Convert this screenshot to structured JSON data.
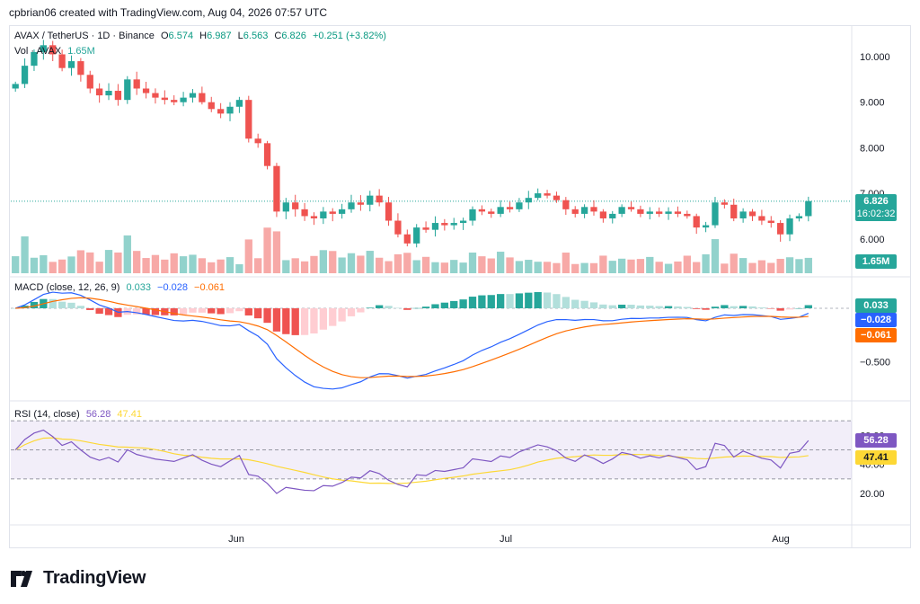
{
  "header": {
    "attribution": "cpbrian06 created with TradingView.com, Aug 04, 2026 07:57 UTC"
  },
  "legend": {
    "symbol": "AVAX / TetherUS · 1D · Binance",
    "o_label": "O",
    "o": "6.574",
    "h_label": "H",
    "h": "6.987",
    "l_label": "L",
    "l": "6.563",
    "c_label": "C",
    "c": "6.826",
    "change": "+0.251 (+3.82%)",
    "vol_label": "Vol · AVAX",
    "vol_value": "1.65M",
    "macd_label": "MACD (close, 12, 26, 9)",
    "macd_hist": "0.033",
    "macd_line": "−0.028",
    "macd_signal": "−0.061",
    "rsi_label": "RSI (14, close)",
    "rsi_value": "56.28",
    "rsi_ma": "47.41"
  },
  "badges": {
    "price": "6.826",
    "countdown": "16:02:32",
    "volume": "1.65M",
    "macd_hist": "0.033",
    "macd_line": "−0.028",
    "macd_signal": "−0.061",
    "rsi": "56.28",
    "rsi_ma": "47.41"
  },
  "colors": {
    "up": "#26a69a",
    "down": "#ef5350",
    "up_vol": "#92d2cc",
    "down_vol": "#f7a9a7",
    "macd": "#2962ff",
    "signal": "#ff6d00",
    "rsi": "#7e57c2",
    "rsi_ma": "#fdd835"
  },
  "brand": "TradingView",
  "chart_data": {
    "type": "candlestick",
    "x_ticks": [
      "Jun",
      "Jul",
      "Aug"
    ],
    "price_axis": [
      "10.000",
      "9.000",
      "8.000",
      "7.000",
      "6.000"
    ],
    "macd_axis": [
      "−0.500"
    ],
    "rsi_axis": [
      "60.00",
      "40.00",
      "20.00"
    ],
    "candles_close": [
      9.4,
      9.8,
      10.1,
      10.25,
      10.05,
      9.75,
      9.9,
      9.6,
      9.3,
      9.15,
      9.25,
      9.05,
      9.5,
      9.3,
      9.2,
      9.1,
      9.05,
      9.0,
      9.1,
      9.2,
      9.0,
      8.85,
      8.75,
      8.9,
      9.05,
      8.2,
      8.1,
      7.6,
      6.6,
      6.8,
      6.65,
      6.5,
      6.45,
      6.6,
      6.55,
      6.65,
      6.8,
      6.75,
      6.95,
      6.8,
      6.4,
      6.1,
      5.9,
      6.25,
      6.2,
      6.35,
      6.3,
      6.35,
      6.4,
      6.65,
      6.6,
      6.55,
      6.7,
      6.65,
      6.8,
      6.9,
      7.0,
      6.95,
      6.85,
      6.65,
      6.55,
      6.7,
      6.6,
      6.45,
      6.55,
      6.7,
      6.65,
      6.55,
      6.6,
      6.55,
      6.6,
      6.55,
      6.5,
      6.25,
      6.3,
      6.8,
      6.75,
      6.45,
      6.6,
      6.5,
      6.4,
      6.35,
      6.1,
      6.45,
      6.5,
      6.83
    ],
    "volume_note": "Volume bars per candle",
    "macd_hist_range": [
      -0.6,
      0.35
    ],
    "rsi_range": [
      10,
      75
    ],
    "rsi_bands": [
      70,
      30
    ]
  }
}
